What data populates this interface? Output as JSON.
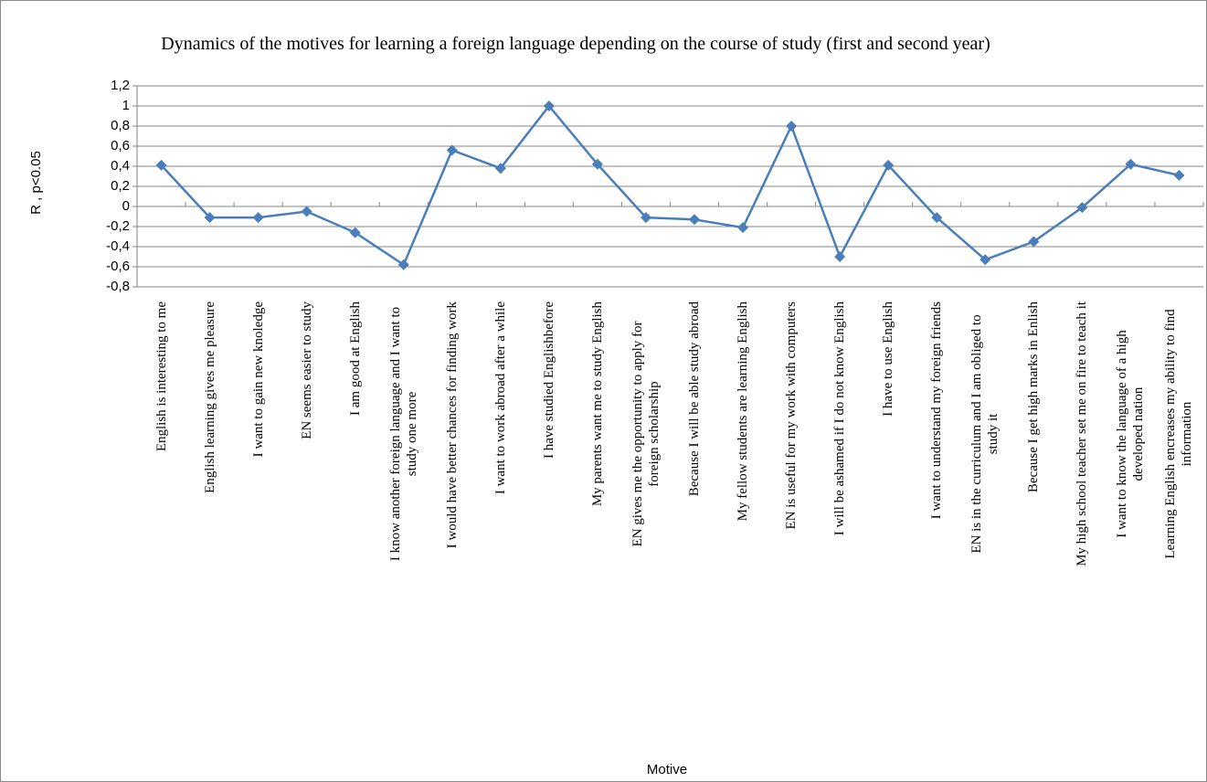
{
  "chart_data": {
    "type": "line",
    "title": "Dynamics of the motives for learning a foreign language depending on the course of study (first and second year)",
    "x_label": "Motive",
    "y_label": "R , p<0.05",
    "categories": [
      "English is interesting to me",
      "English learning gives me pleasure",
      "I want to gain new knoledge",
      "EN seems easier to study",
      "I am good at English",
      "I know another foreign language and I want to study one more",
      "I would have better chances for finding work",
      "I want to work abroad after a while",
      "I have studied Englishbefore",
      "My parents want me to study English",
      "EN gives me the opportunity to apply for foreign scholarship",
      "Because I will be able study abroad",
      "My fellow students are learning English",
      "EN is useful for my work with computers",
      "I will be ashamed if I do not know English",
      "I have to use English",
      "I want to understand my foreign friends",
      "EN is in the curriculum and I am obliged to study it",
      "Because I get high marks in Enlish",
      "My high school teacher set me on fire to teach it",
      "I want to know the language of a high developed nation",
      "Learning English encreases my ability to find information"
    ],
    "values": [
      0.41,
      -0.11,
      -0.11,
      -0.05,
      -0.26,
      -0.58,
      0.56,
      0.38,
      1.0,
      0.42,
      -0.11,
      -0.13,
      -0.21,
      0.8,
      -0.5,
      0.41,
      -0.11,
      -0.53,
      -0.35,
      -0.01,
      0.42,
      0.31
    ],
    "color": "#4a7ebb",
    "ylim": [
      -0.8,
      1.2
    ],
    "yticks": [
      {
        "value": 1.2,
        "label": "1,2"
      },
      1,
      {
        "value": 0.8,
        "label": "0,8"
      },
      {
        "value": 0.6,
        "label": "0,6"
      },
      {
        "value": 0.4,
        "label": "0,4"
      },
      {
        "value": 0.2,
        "label": "0,2"
      },
      0,
      {
        "value": -0.2,
        "label": "-0,2"
      },
      {
        "value": -0.4,
        "label": "-0,4"
      },
      {
        "value": -0.6,
        "label": "-0,6"
      },
      {
        "value": -0.8,
        "label": "-0,8"
      }
    ],
    "grid": true
  }
}
